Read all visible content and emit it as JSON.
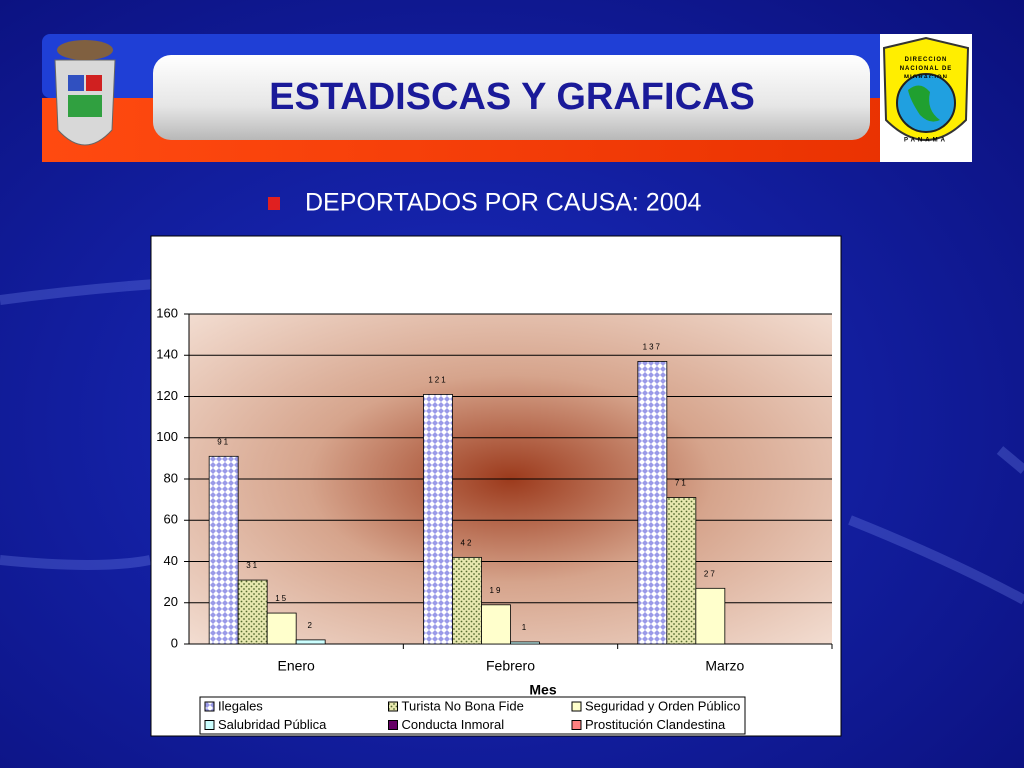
{
  "header": {
    "title": "ESTADISCAS Y GRAFICAS",
    "logo_text": "DIRECCION NACIONAL DE MIGRACION",
    "logo_country": "PANAMA"
  },
  "subtitle": "DEPORTADOS POR CAUSA: 2004",
  "chart_data": {
    "type": "bar",
    "x_label": "Mes",
    "categories": [
      "Enero",
      "Febrero",
      "Marzo"
    ],
    "series": [
      {
        "name": "Ilegales",
        "color": "#b8b8f0",
        "values": [
          91,
          121,
          137
        ]
      },
      {
        "name": "Turista No Bona Fide",
        "color": "#e4e4a8",
        "values": [
          31,
          42,
          71
        ]
      },
      {
        "name": "Seguridad y Orden Público",
        "color": "#ffffcc",
        "values": [
          15,
          19,
          27
        ]
      },
      {
        "name": "Salubridad Pública",
        "color": "#ccffff",
        "values": [
          2,
          1,
          null
        ]
      },
      {
        "name": "Conducta Inmoral",
        "color": "#660066",
        "values": [
          null,
          null,
          null
        ]
      },
      {
        "name": "Prostitución Clandestina",
        "color": "#ff8080",
        "values": [
          null,
          null,
          null
        ]
      }
    ],
    "ylim": [
      0,
      160
    ],
    "yticks": [
      0,
      20,
      40,
      60,
      80,
      100,
      120,
      140,
      160
    ],
    "grid": true,
    "legend": "bottom"
  }
}
